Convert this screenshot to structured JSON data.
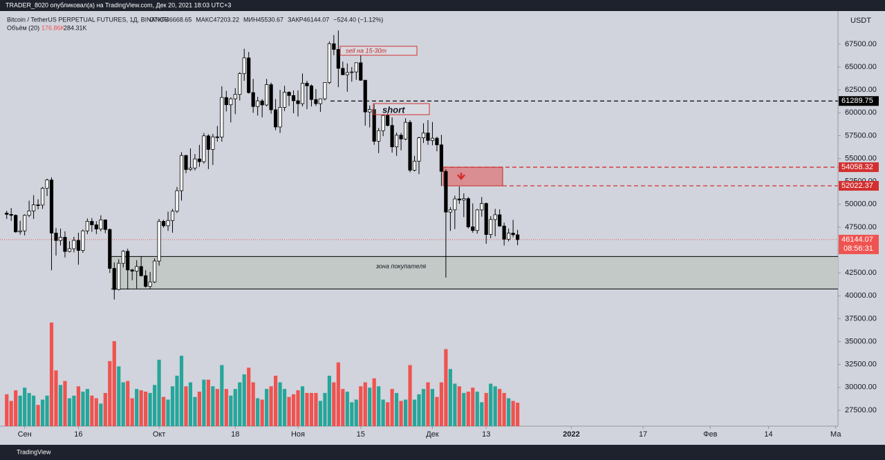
{
  "header": {
    "publisher": "TRADER_8020 опубликовал(а) на TradingView.com, Дек 20, 2021 18:03 UTC+3",
    "footer": "TradingView"
  },
  "chart_data": {
    "type": "candlestick",
    "title": "Bitcoin / TetherUS PERPETUAL FUTURES, 1Д, BINANCE",
    "ohlc_text": [
      "ОТКР46668.65",
      "МАКС47203.22",
      "МИН45530.67",
      "ЗАКР46144.07",
      "−524.40 (−1.12%)"
    ],
    "volume_legend": [
      "Объём (20)",
      "176.86K",
      "284.31K"
    ],
    "currency_label": "USDT",
    "open": [
      49050,
      48900,
      48800,
      46990,
      47100,
      48800,
      49280,
      49940,
      49920,
      51750,
      52660,
      46860,
      46050,
      46400,
      44850,
      45150,
      46060,
      44960,
      47100,
      48140,
      47760,
      47300,
      48300,
      47250,
      43000,
      40700,
      43560,
      44870,
      42830,
      42700,
      43200,
      42200,
      41030,
      41520,
      43800,
      48140,
      47660,
      48230,
      49250,
      51490,
      55340,
      53800,
      53970,
      54960,
      54660,
      57480,
      56000,
      57370,
      57360,
      61670,
      60880,
      61530,
      62010,
      64280,
      66000,
      62210,
      60690,
      61300,
      60860,
      63080,
      60330,
      58450,
      60590,
      62250,
      61890,
      61320,
      61000,
      63230,
      62950,
      61450,
      61000,
      61530,
      63310,
      67550,
      66930,
      64860,
      64160,
      64400,
      64470,
      65470,
      63560,
      60090,
      60360,
      56890,
      58050,
      59710,
      58620,
      56280,
      57550,
      57140,
      58960,
      53730,
      54720,
      57270,
      57790,
      56980,
      57220,
      56500,
      53600,
      49150,
      49400,
      50590,
      50470,
      50620,
      47540,
      47140,
      49390,
      50090,
      46700,
      48340,
      48860,
      47630,
      46190,
      46850,
      46668.65
    ],
    "high": [
      49300,
      49600,
      48900,
      48200,
      48900,
      50400,
      51000,
      50550,
      51900,
      52800,
      52950,
      47400,
      47350,
      47050,
      45980,
      46450,
      46900,
      47250,
      48450,
      48500,
      48150,
      48800,
      48350,
      47350,
      43650,
      44000,
      45000,
      45150,
      42950,
      43900,
      44350,
      42800,
      42600,
      44100,
      48400,
      48300,
      49200,
      49500,
      51900,
      55700,
      55400,
      56100,
      55500,
      56500,
      57800,
      57650,
      57700,
      58550,
      62900,
      62400,
      61700,
      62700,
      64450,
      67000,
      66650,
      63700,
      61750,
      61500,
      63700,
      63300,
      61500,
      62500,
      62950,
      62350,
      62450,
      62450,
      64300,
      63500,
      63100,
      62600,
      61550,
      63300,
      67800,
      68500,
      69000,
      65600,
      65400,
      65000,
      65500,
      66300,
      63600,
      60800,
      60950,
      58350,
      59850,
      60000,
      59500,
      57850,
      57800,
      59400,
      59200,
      55300,
      57400,
      58850,
      59200,
      59000,
      57400,
      57600,
      53850,
      49700,
      50950,
      51950,
      51200,
      50800,
      50100,
      49500,
      50800,
      50200,
      48700,
      49500,
      49450,
      48000,
      47350,
      48300,
      47203.22
    ],
    "low": [
      48400,
      48200,
      46900,
      46700,
      46600,
      48600,
      48400,
      49450,
      49500,
      50900,
      42800,
      44400,
      45500,
      44200,
      44750,
      44750,
      43400,
      44700,
      46750,
      47000,
      46750,
      47050,
      46850,
      42500,
      39600,
      40600,
      43100,
      40700,
      41700,
      40800,
      42100,
      40900,
      40750,
      41400,
      43300,
      47450,
      47100,
      46900,
      49050,
      50400,
      53400,
      53650,
      53700,
      54100,
      54450,
      53850,
      54300,
      56850,
      56850,
      60150,
      58950,
      59850,
      61350,
      63500,
      62100,
      60000,
      59700,
      59500,
      60700,
      59900,
      58100,
      57800,
      60200,
      60750,
      59950,
      59600,
      60700,
      60400,
      60700,
      60750,
      60100,
      61350,
      63150,
      66300,
      62800,
      64100,
      62300,
      63400,
      63600,
      63500,
      58600,
      58400,
      56500,
      55600,
      57450,
      58500,
      55650,
      55300,
      55900,
      57000,
      53500,
      53600,
      53300,
      56700,
      56500,
      56450,
      55800,
      52000,
      42000,
      47100,
      47300,
      50050,
      48600,
      47350,
      46900,
      46800,
      48650,
      45700,
      46300,
      46500,
      47550,
      45500,
      45950,
      46400,
      45530.67
    ],
    "close": [
      48900,
      48800,
      46990,
      47100,
      48800,
      49280,
      49940,
      49920,
      51750,
      52660,
      46860,
      46050,
      46400,
      44850,
      45150,
      46060,
      44960,
      47100,
      48140,
      47760,
      47300,
      48300,
      47250,
      43000,
      40700,
      43560,
      44870,
      42830,
      42700,
      43200,
      42200,
      41030,
      41520,
      43800,
      48140,
      47660,
      48230,
      49250,
      51490,
      55340,
      53800,
      53970,
      54960,
      54660,
      57480,
      56000,
      57370,
      57360,
      61670,
      60880,
      61530,
      62010,
      64280,
      66000,
      62210,
      60690,
      61300,
      60860,
      63080,
      60330,
      58450,
      60590,
      62250,
      61890,
      61320,
      61000,
      63230,
      62950,
      61450,
      61000,
      61530,
      63310,
      67550,
      66930,
      64860,
      64160,
      64400,
      64470,
      65470,
      63560,
      60090,
      60360,
      56890,
      58050,
      59710,
      58620,
      56280,
      57550,
      57140,
      58960,
      53730,
      54720,
      57270,
      57790,
      56980,
      57220,
      56500,
      53600,
      49150,
      49400,
      50590,
      50470,
      50620,
      47540,
      47140,
      49390,
      50090,
      46700,
      48340,
      48860,
      47630,
      46190,
      46850,
      46680,
      46144.07
    ],
    "volume": [
      240,
      190,
      270,
      230,
      290,
      250,
      230,
      160,
      200,
      230,
      780,
      420,
      310,
      340,
      210,
      230,
      300,
      260,
      280,
      230,
      210,
      170,
      250,
      490,
      640,
      450,
      330,
      340,
      210,
      280,
      270,
      260,
      250,
      310,
      500,
      220,
      200,
      300,
      380,
      530,
      300,
      330,
      220,
      260,
      350,
      350,
      300,
      280,
      460,
      280,
      230,
      280,
      330,
      390,
      440,
      330,
      210,
      200,
      280,
      300,
      380,
      330,
      280,
      220,
      240,
      270,
      300,
      250,
      250,
      250,
      190,
      250,
      380,
      330,
      480,
      280,
      260,
      180,
      200,
      300,
      330,
      290,
      360,
      300,
      200,
      180,
      280,
      250,
      190,
      200,
      460,
      200,
      240,
      280,
      330,
      280,
      220,
      330,
      580,
      430,
      320,
      300,
      250,
      260,
      290,
      260,
      180,
      250,
      320,
      300,
      280,
      250,
      210,
      190,
      176.86
    ],
    "up_color": "#ffffff",
    "down_color": "#000000",
    "volume_up_color": "#26a69a",
    "volume_down_color": "#ef5350",
    "xlim": [
      -1.5,
      185.5
    ],
    "xticks": [
      {
        "value": 4,
        "label": "Сен"
      },
      16,
      {
        "value": 34,
        "label": "Окт"
      },
      {
        "value": 51,
        "label": "18"
      },
      {
        "value": 65,
        "label": "Ноя"
      },
      {
        "value": 79,
        "label": "15"
      },
      {
        "value": 95,
        "label": "Дек"
      },
      {
        "value": 107,
        "label": "13"
      },
      {
        "value": 126,
        "label": "2022"
      },
      {
        "value": 142,
        "label": "17"
      },
      {
        "value": 157,
        "label": "Фев"
      },
      {
        "value": 170,
        "label": "14"
      },
      {
        "value": 185,
        "label": "Ма"
      }
    ],
    "ylim": [
      25760,
      71120
    ],
    "yticks": [
      {
        "value": 27500,
        "label": "27500.00"
      },
      {
        "value": 30000,
        "label": "30000.00"
      },
      {
        "value": 32500,
        "label": "32500.00"
      },
      {
        "value": 35000,
        "label": "35000.00"
      },
      {
        "value": 37500,
        "label": "37500.00"
      },
      {
        "value": 40000,
        "label": "40000.00"
      },
      {
        "value": 42500,
        "label": "42500.00"
      },
      {
        "value": 45000,
        "label": "45000.00"
      },
      {
        "value": 47500,
        "label": "47500.00"
      },
      {
        "value": 50000,
        "label": "50000.00"
      },
      {
        "value": 52500,
        "label": "52500.00"
      },
      {
        "value": 55000,
        "label": "55000.00"
      },
      {
        "value": 57500,
        "label": "57500.00"
      },
      {
        "value": 60000,
        "label": "60000.00"
      },
      {
        "value": 62500,
        "label": "62500.00"
      },
      {
        "value": 65000,
        "label": "65000.00"
      },
      {
        "value": 67500,
        "label": "67500.00"
      }
    ],
    "price_lines": [
      {
        "value": 61289.75,
        "color": "#000000"
      },
      {
        "value": 54058.32,
        "color": "#d32f2f"
      },
      {
        "value": 52022.37,
        "color": "#d32f2f"
      }
    ],
    "last_price": {
      "value": 46144.07,
      "countdown": "08:56:31",
      "color": "#ef5350"
    },
    "buyer_zone": {
      "label": "зона покупателя",
      "top": 44300,
      "bottom": 40750
    },
    "annotations": [
      "sell на 15-30m",
      "short"
    ]
  }
}
